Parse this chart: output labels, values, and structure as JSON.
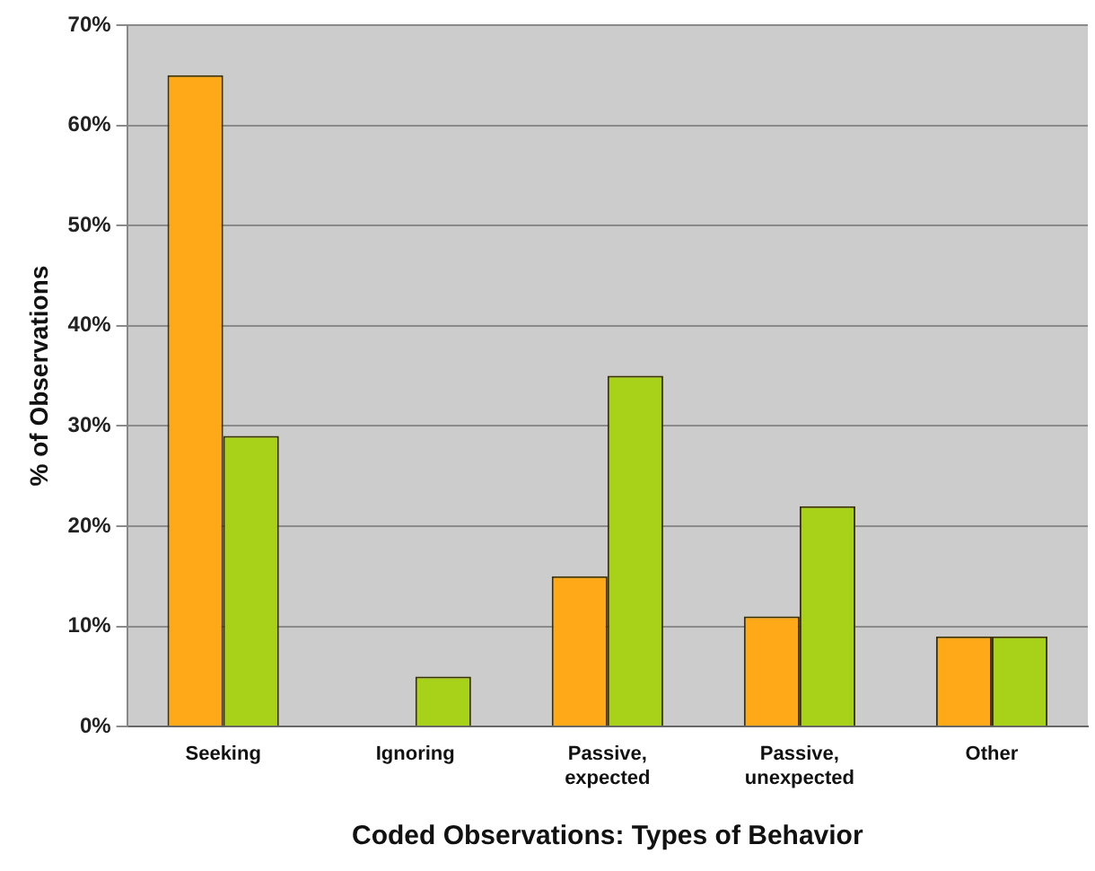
{
  "chart_data": {
    "type": "bar",
    "xlabel": "Coded Observations: Types of Behavior",
    "ylabel": "% of Observations",
    "categories": [
      "Seeking",
      "Ignoring",
      "Passive, expected",
      "Passive, unexpected",
      "Other"
    ],
    "series": [
      {
        "color": "#ffa919",
        "values": [
          65,
          0,
          15,
          11,
          9
        ]
      },
      {
        "color": "#a8d11a",
        "values": [
          29,
          5,
          35,
          22,
          9
        ]
      }
    ],
    "ylim": [
      0,
      70
    ],
    "yticks": [
      {
        "value": 0,
        "label": "0%"
      },
      {
        "value": 10,
        "label": "10%"
      },
      {
        "value": 20,
        "label": "20%"
      },
      {
        "value": 30,
        "label": "30%"
      },
      {
        "value": 40,
        "label": "40%"
      },
      {
        "value": 50,
        "label": "50%"
      },
      {
        "value": 60,
        "label": "60%"
      },
      {
        "value": 70,
        "label": "70%"
      }
    ],
    "grid": "y",
    "legend": false
  }
}
